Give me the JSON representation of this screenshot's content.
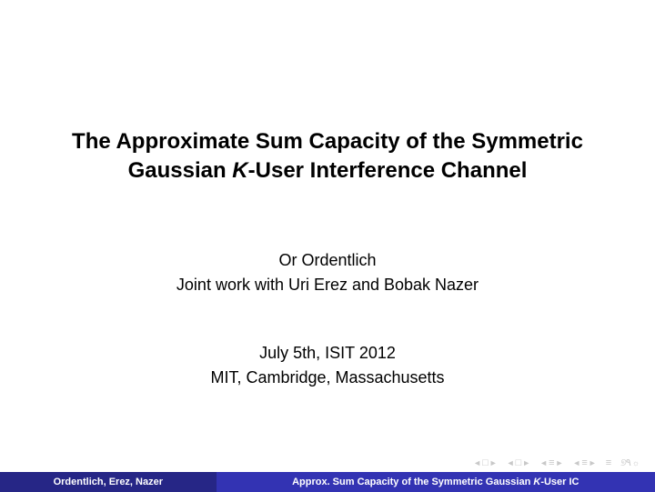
{
  "title": {
    "line1": "The Approximate Sum Capacity of the Symmetric",
    "line2_pre": "Gaussian ",
    "line2_italic": "K",
    "line2_post": "-User Interference Channel"
  },
  "authors": {
    "line1": "Or Ordentlich",
    "line2": "Joint work with Uri Erez and Bobak Nazer"
  },
  "venue": {
    "line1": "July 5th, ISIT 2012",
    "line2": "MIT, Cambridge, Massachusetts"
  },
  "footer": {
    "left": "Ordentlich, Erez, Nazer",
    "right_pre": "Approx. Sum Capacity of the Symmetric Gaussian ",
    "right_italic": "K",
    "right_post": "-User IC"
  },
  "colors": {
    "footer_left_bg": "#262686",
    "footer_right_bg": "#3333b3",
    "nav_icon": "#c8c8c8",
    "text": "#000000",
    "background": "#ffffff"
  }
}
